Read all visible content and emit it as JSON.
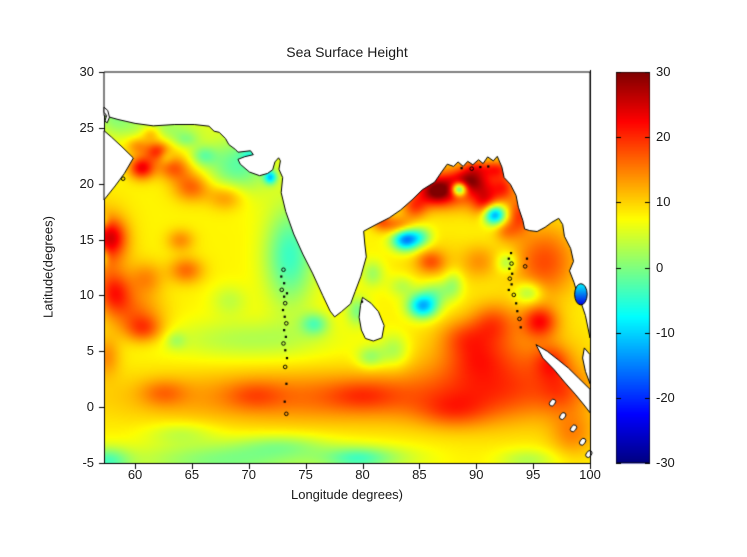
{
  "figure": {
    "background": "#ffffff",
    "text_color": "#1a1a1a"
  },
  "chart_data": {
    "type": "heatmap",
    "title": "Sea Surface Height",
    "xlabel": "Longitude degrees)",
    "ylabel": "Latitude(degrees)",
    "xlim": [
      57.27,
      100
    ],
    "ylim": [
      -5,
      30
    ],
    "x_ticks": [
      60,
      65,
      70,
      75,
      80,
      85,
      90,
      95,
      100
    ],
    "y_ticks": [
      30,
      25,
      20,
      15,
      10,
      5,
      0,
      -5
    ],
    "colormap": "jet",
    "grid": false,
    "colorbar": {
      "vmin": -30,
      "vmax": 30,
      "ticks": [
        30,
        20,
        10,
        0,
        -10,
        -20,
        -30
      ],
      "position": "right"
    },
    "field": {
      "description": "sea surface height anomaly field, base value plus gaussian eddies [lon,lat,amplitude,sigma_lon,sigma_lat]",
      "base": 8,
      "clip": [
        -30,
        30
      ],
      "gaussians": [
        [
          78,
          0.8,
          8,
          18,
          2.4
        ],
        [
          68,
          -4.8,
          -8,
          8,
          1.6
        ],
        [
          80.5,
          -4.6,
          -6,
          4.5,
          1.1
        ],
        [
          57.5,
          -4.9,
          -10,
          2,
          1.2
        ],
        [
          70,
          6,
          -5,
          7,
          1.8
        ],
        [
          92,
          3,
          9,
          6.5,
          4
        ],
        [
          73.6,
          13.5,
          -12,
          2.2,
          4.5
        ],
        [
          69,
          21.6,
          -10,
          2.8,
          2.6
        ],
        [
          62.5,
          24.9,
          -6,
          3.5,
          1.2
        ],
        [
          58.3,
          26.2,
          -7,
          1.8,
          1.8
        ],
        [
          96,
          13,
          10,
          2.8,
          3.2
        ],
        [
          88.2,
          19.6,
          12,
          3.6,
          1.8
        ],
        [
          57.4,
          14.5,
          9,
          2,
          3
        ],
        [
          60,
          8.3,
          7,
          2.5,
          2
        ],
        [
          86.5,
          12.5,
          3,
          3,
          2.5
        ],
        [
          60.6,
          21.4,
          15,
          1.1,
          1
        ],
        [
          62,
          22.9,
          12,
          1.1,
          0.9
        ],
        [
          63.4,
          21.4,
          9,
          1.4,
          1.1
        ],
        [
          60.2,
          23.4,
          6,
          1,
          0.8
        ],
        [
          61.4,
          24.5,
          7,
          0.9,
          0.7
        ],
        [
          65,
          19.7,
          9,
          1.6,
          1.3
        ],
        [
          68,
          18.8,
          7,
          1.6,
          1.2
        ],
        [
          64.5,
          12.2,
          8,
          1.5,
          1.2
        ],
        [
          64,
          14.9,
          6,
          1.2,
          1
        ],
        [
          58,
          15.2,
          9,
          1.2,
          1.5
        ],
        [
          58.2,
          10.2,
          11,
          1.5,
          1.8
        ],
        [
          61,
          11.5,
          6,
          1.5,
          1.5
        ],
        [
          60.8,
          6.9,
          8,
          1.6,
          1.2
        ],
        [
          57.5,
          4.5,
          6,
          1.2,
          1.8
        ],
        [
          66,
          22.5,
          -7,
          1.1,
          0.9
        ],
        [
          62.7,
          22.4,
          -5,
          0.7,
          0.7
        ],
        [
          64.5,
          23.9,
          -5,
          1.1,
          0.7
        ],
        [
          71.9,
          20.55,
          -16,
          0.55,
          0.6
        ],
        [
          70.1,
          22.6,
          -6,
          0.8,
          0.6
        ],
        [
          75.8,
          7.4,
          -9,
          1.2,
          1
        ],
        [
          57.2,
          13.4,
          -7,
          0.5,
          0.9
        ],
        [
          57.2,
          16.6,
          -5,
          0.5,
          0.7
        ],
        [
          63.6,
          5.9,
          -4,
          0.9,
          0.8
        ],
        [
          68.3,
          9.5,
          -4,
          1.6,
          1.4
        ],
        [
          86.5,
          19.3,
          15,
          1.5,
          1.2
        ],
        [
          89.5,
          20.3,
          12,
          1.5,
          1
        ],
        [
          90.8,
          18.4,
          11,
          1.1,
          1.4
        ],
        [
          84.6,
          17.9,
          9,
          1.1,
          1.1
        ],
        [
          83.2,
          16.1,
          9,
          1.3,
          0.9
        ],
        [
          81.6,
          16.6,
          8,
          0.9,
          0.8
        ],
        [
          88.5,
          19.5,
          -26,
          0.65,
          0.6
        ],
        [
          85.2,
          15.2,
          -8,
          1,
          0.9
        ],
        [
          91.6,
          17.2,
          -24,
          0.95,
          0.9
        ],
        [
          88,
          11,
          -6,
          0.9,
          1.3
        ],
        [
          83.8,
          15,
          -24,
          1.2,
          1
        ],
        [
          85.3,
          9,
          -20,
          1.3,
          1.1
        ],
        [
          86.5,
          10.3,
          -7,
          1.5,
          1.2
        ],
        [
          80.9,
          11.9,
          -6,
          1,
          1.2
        ],
        [
          83.5,
          10.8,
          -5,
          1.2,
          1
        ],
        [
          82.8,
          5,
          -6,
          1.3,
          1.5
        ],
        [
          80.7,
          4.4,
          -7,
          1.2,
          1
        ],
        [
          79.6,
          8.6,
          -8,
          1,
          1.3
        ],
        [
          92.7,
          12.9,
          -7,
          0.9,
          0.9
        ],
        [
          94.6,
          10.2,
          -8,
          1.2,
          1
        ],
        [
          86,
          13,
          7,
          1.2,
          1
        ],
        [
          91.8,
          21.3,
          10,
          1.2,
          0.8
        ],
        [
          89.9,
          21.4,
          7,
          1.1,
          0.7
        ],
        [
          92.6,
          15.8,
          6,
          1,
          1
        ],
        [
          92.4,
          19.6,
          9,
          1,
          1.2
        ],
        [
          93.8,
          17.2,
          10,
          1,
          1.6
        ],
        [
          95.6,
          7.6,
          12,
          1.5,
          1.4
        ],
        [
          96.6,
          4,
          7,
          1.5,
          1.5
        ],
        [
          91.5,
          7.5,
          8,
          2,
          1.8
        ],
        [
          90,
          4.5,
          5,
          2.5,
          2
        ],
        [
          88.8,
          6.3,
          5,
          2,
          1.5
        ],
        [
          90.3,
          13,
          5,
          1.5,
          1.5
        ],
        [
          97.5,
          1.5,
          5,
          2,
          2
        ],
        [
          98.5,
          -2.5,
          6,
          2,
          2
        ],
        [
          62.5,
          1.2,
          5,
          2,
          1.2
        ],
        [
          70.5,
          1,
          4,
          2.5,
          1.3
        ],
        [
          80,
          1,
          4,
          3,
          1.3
        ],
        [
          88,
          -0.5,
          5,
          3,
          1.5
        ],
        [
          64,
          -2.4,
          -4,
          3,
          1
        ],
        [
          73,
          -3.5,
          -5,
          4,
          1
        ],
        [
          79.5,
          -4.7,
          -5,
          2.5,
          1
        ],
        [
          94.5,
          -4.8,
          -5,
          2.5,
          1
        ]
      ]
    },
    "land": {
      "fill": "#ffffff",
      "coast_color": "#000000",
      "polygons": {
        "mainland_north": [
          [
            57.27,
            26.1
          ],
          [
            58.5,
            25.75
          ],
          [
            60,
            25.4
          ],
          [
            61.6,
            25.18
          ],
          [
            63.5,
            25.3
          ],
          [
            65.2,
            25.3
          ],
          [
            66.5,
            25.15
          ],
          [
            66.95,
            24.7
          ],
          [
            67.4,
            24.6
          ],
          [
            67.95,
            24.05
          ],
          [
            68.25,
            23.5
          ],
          [
            68.85,
            23.05
          ],
          [
            69.05,
            22.82
          ],
          [
            70.15,
            22.95
          ],
          [
            70.4,
            22.6
          ],
          [
            69.65,
            22.42
          ],
          [
            69.05,
            22.18
          ],
          [
            69.25,
            21.75
          ],
          [
            70.05,
            21.05
          ],
          [
            70.95,
            20.72
          ],
          [
            71.65,
            20.92
          ],
          [
            72.1,
            21.25
          ],
          [
            72.3,
            21.95
          ],
          [
            72.62,
            22.32
          ],
          [
            72.78,
            22.05
          ],
          [
            72.65,
            21.3
          ],
          [
            72.98,
            20.55
          ],
          [
            72.85,
            19.2
          ],
          [
            73.25,
            17.5
          ],
          [
            73.95,
            15.5
          ],
          [
            74.75,
            13.7
          ],
          [
            75.6,
            12
          ],
          [
            76.5,
            10
          ],
          [
            77.15,
            8.6
          ],
          [
            77.55,
            8.08
          ],
          [
            78.15,
            8.55
          ],
          [
            78.95,
            9.25
          ],
          [
            79.35,
            10.35
          ],
          [
            79.85,
            11.7
          ],
          [
            80.33,
            13.45
          ],
          [
            80.2,
            14.6
          ],
          [
            80.1,
            15.75
          ],
          [
            81.1,
            16.3
          ],
          [
            82.35,
            16.95
          ],
          [
            83.35,
            17.65
          ],
          [
            84.35,
            18.55
          ],
          [
            85.25,
            19.45
          ],
          [
            86.35,
            20.15
          ],
          [
            86.95,
            21.05
          ],
          [
            87.45,
            21.75
          ],
          [
            88,
            21.55
          ],
          [
            88.4,
            21.95
          ],
          [
            88.85,
            21.55
          ],
          [
            89.25,
            22
          ],
          [
            89.7,
            21.7
          ],
          [
            90.2,
            22.15
          ],
          [
            90.6,
            21.8
          ],
          [
            91,
            22.4
          ],
          [
            91.5,
            22.05
          ],
          [
            91.85,
            22.45
          ],
          [
            92.25,
            21.5
          ],
          [
            92.45,
            20.55
          ],
          [
            93,
            19.95
          ],
          [
            93.5,
            18.95
          ],
          [
            93.7,
            17.9
          ],
          [
            94.1,
            16.7
          ],
          [
            94.25,
            15.95
          ],
          [
            94.7,
            15.8
          ],
          [
            95.35,
            15.72
          ],
          [
            96.05,
            16.1
          ],
          [
            96.65,
            16.55
          ],
          [
            97.25,
            16.9
          ],
          [
            97.6,
            16.35
          ],
          [
            97.75,
            15.3
          ],
          [
            98.3,
            14.2
          ],
          [
            98.55,
            13.05
          ],
          [
            98.2,
            12.2
          ],
          [
            98.6,
            11.15
          ],
          [
            98.85,
            10.25
          ],
          [
            99.25,
            9.25
          ],
          [
            99.6,
            8.2
          ],
          [
            100,
            6.2
          ],
          [
            100,
            30
          ],
          [
            57.27,
            30
          ]
        ],
        "oman": [
          [
            57.27,
            18.55
          ],
          [
            58.25,
            19.8
          ],
          [
            59.05,
            20.9
          ],
          [
            59.85,
            22.3
          ],
          [
            58.85,
            23.3
          ],
          [
            57.95,
            24.15
          ],
          [
            57.27,
            24.75
          ]
        ],
        "musandam": [
          [
            57.27,
            26.85
          ],
          [
            57.6,
            26.55
          ],
          [
            57.75,
            25.95
          ],
          [
            57.55,
            25.45
          ],
          [
            57.35,
            25.6
          ],
          [
            57.5,
            26.1
          ],
          [
            57.27,
            26.4
          ]
        ],
        "sri_lanka": [
          [
            80,
            9.82
          ],
          [
            80.75,
            9.3
          ],
          [
            81.4,
            8.55
          ],
          [
            81.9,
            7.3
          ],
          [
            81.7,
            6.2
          ],
          [
            80.95,
            5.92
          ],
          [
            80.25,
            6.15
          ],
          [
            79.9,
            6.9
          ],
          [
            79.7,
            8.05
          ],
          [
            79.82,
            9.1
          ]
        ],
        "sumatra": [
          [
            95.25,
            5.6
          ],
          [
            96.25,
            5
          ],
          [
            97.25,
            4.2
          ],
          [
            98.1,
            3.5
          ],
          [
            99,
            2.6
          ],
          [
            100,
            1.6
          ],
          [
            100,
            -0.5
          ],
          [
            99.55,
            0.1
          ],
          [
            98.75,
            1.1
          ],
          [
            97.75,
            2.25
          ],
          [
            96.85,
            3.35
          ],
          [
            95.85,
            4.4
          ]
        ],
        "malay_sliver": [
          [
            99.5,
            5.3
          ],
          [
            100,
            4.7
          ],
          [
            100,
            2.1
          ],
          [
            99.6,
            3.2
          ],
          [
            99.35,
            4.4
          ]
        ]
      },
      "island_chains": {
        "maldives_lakshadweep": [
          [
            73.05,
            12.3
          ],
          [
            72.85,
            11.7
          ],
          [
            73.1,
            11.1
          ],
          [
            72.9,
            10.5
          ],
          [
            73.35,
            10.2
          ],
          [
            73.1,
            9.9
          ],
          [
            73.2,
            9.3
          ],
          [
            73,
            8.7
          ],
          [
            73.15,
            8.1
          ],
          [
            73.3,
            7.5
          ],
          [
            73.1,
            6.9
          ],
          [
            73.25,
            6.3
          ],
          [
            73.05,
            5.7
          ],
          [
            73.2,
            5.1
          ],
          [
            73.35,
            4.4
          ],
          [
            73.2,
            3.6
          ],
          [
            73.3,
            2.1
          ],
          [
            73.15,
            0.5
          ],
          [
            73.3,
            -0.6
          ]
        ],
        "andaman_nicobar": [
          [
            93.05,
            13.8
          ],
          [
            92.85,
            13.3
          ],
          [
            93.1,
            12.85
          ],
          [
            92.9,
            12.4
          ],
          [
            93.15,
            11.95
          ],
          [
            92.95,
            11.5
          ],
          [
            93.1,
            11
          ],
          [
            92.85,
            10.5
          ],
          [
            93.3,
            10.05
          ],
          [
            93.5,
            9.3
          ],
          [
            93.6,
            8.6
          ],
          [
            93.8,
            7.9
          ],
          [
            93.9,
            7.15
          ],
          [
            94.45,
            13.3
          ],
          [
            94.3,
            12.6
          ]
        ],
        "mentawai": [
          [
            96.7,
            0.4
          ],
          [
            97.6,
            -0.8
          ],
          [
            98.55,
            -1.9
          ],
          [
            99.35,
            -3.1
          ],
          [
            99.9,
            -4.2
          ]
        ],
        "misc_specks": [
          [
            58.95,
            20.45
          ],
          [
            79.95,
            9.45
          ],
          [
            88.7,
            21.4
          ],
          [
            89.6,
            21.35
          ],
          [
            90.35,
            21.5
          ],
          [
            91.05,
            21.55
          ]
        ]
      },
      "gulf_of_thailand_patch": {
        "lon": 99.2,
        "lat": 10.1,
        "rx": 0.55,
        "ry": 0.95,
        "value": -18
      }
    }
  }
}
